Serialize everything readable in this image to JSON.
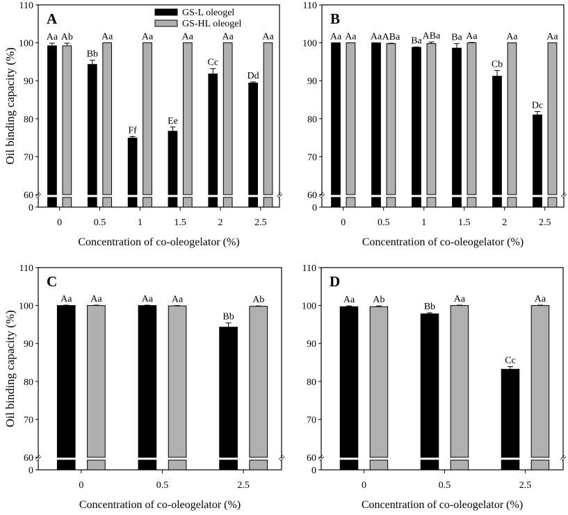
{
  "chart_data": [
    {
      "type": "bar",
      "panel_label": "A",
      "categories": [
        "0",
        "0.5",
        "1",
        "1.5",
        "2",
        "2.5"
      ],
      "xlabel": "Concentration of co-oleogelator (%)",
      "ylabel": "Oil binding capacity (%)",
      "ylim": [
        60,
        110
      ],
      "y_axis_break": [
        0,
        60
      ],
      "yticks": [
        "0",
        "60",
        "70",
        "80",
        "90",
        "100",
        "110"
      ],
      "legend": {
        "placement": "top-center",
        "entries": [
          "GS-L oleogel",
          "GS-HL oleogel"
        ]
      },
      "series": [
        {
          "name": "GS-L oleogel",
          "color": "#000000",
          "values": [
            99.2,
            94.3,
            74.9,
            76.7,
            91.8,
            89.4
          ],
          "errors": [
            0.7,
            1.1,
            0.4,
            1.1,
            1.4,
            0.3
          ],
          "labels": [
            "Aa",
            "Bb",
            "Ff",
            "Ee",
            "Cc",
            "Dd"
          ]
        },
        {
          "name": "GS-HL oleogel",
          "color": "#b0b0b0",
          "values": [
            99.2,
            100,
            100,
            100,
            100,
            100
          ],
          "errors": [
            0.7,
            0,
            0,
            0,
            0,
            0
          ],
          "labels": [
            "Ab",
            "Aa",
            "Aa",
            "Aa",
            "Aa",
            "Aa"
          ]
        }
      ]
    },
    {
      "type": "bar",
      "panel_label": "B",
      "categories": [
        "0",
        "0.5",
        "1",
        "1.5",
        "2",
        "2.5"
      ],
      "xlabel": "Concentration of co-oleogelator (%)",
      "ylabel": "",
      "ylim": [
        60,
        110
      ],
      "y_axis_break": [
        0,
        60
      ],
      "yticks": [
        "0",
        "60",
        "70",
        "80",
        "90",
        "100",
        "110"
      ],
      "series": [
        {
          "name": "GS-L oleogel",
          "color": "#000000",
          "values": [
            100,
            100,
            98.8,
            98.6,
            91.2,
            81.0
          ],
          "errors": [
            0,
            0,
            0.1,
            1.2,
            1.5,
            0.9
          ],
          "labels": [
            "Aa",
            "Aa",
            "Ba",
            "Ba",
            "Cb",
            "Dc"
          ]
        },
        {
          "name": "GS-HL oleogel",
          "color": "#b0b0b0",
          "values": [
            100,
            99.8,
            99.8,
            100,
            100,
            100
          ],
          "errors": [
            0,
            0.1,
            0.4,
            0.1,
            0,
            0
          ],
          "labels": [
            "Aa",
            "ABa",
            "ABa",
            "Aa",
            "Aa",
            "Aa"
          ]
        }
      ]
    },
    {
      "type": "bar",
      "panel_label": "C",
      "categories": [
        "0",
        "0.5",
        "2.5"
      ],
      "xlabel": "Concentration of co-oleogelator (%)",
      "ylabel": "Oil binding capacity (%)",
      "ylim": [
        60,
        110
      ],
      "y_axis_break": [
        0,
        60
      ],
      "yticks": [
        "0",
        "60",
        "70",
        "80",
        "90",
        "100",
        "110"
      ],
      "series": [
        {
          "name": "GS-L oleogel",
          "color": "#000000",
          "values": [
            100,
            100,
            94.3
          ],
          "errors": [
            0.1,
            0.1,
            1.1
          ],
          "labels": [
            "Aa",
            "Aa",
            "Bb"
          ]
        },
        {
          "name": "GS-HL oleogel",
          "color": "#b0b0b0",
          "values": [
            100,
            99.9,
            99.8
          ],
          "errors": [
            0.1,
            0.1,
            0.1
          ],
          "labels": [
            "Aa",
            "Aa",
            "Ab"
          ]
        }
      ]
    },
    {
      "type": "bar",
      "panel_label": "D",
      "categories": [
        "0",
        "0.5",
        "2.5"
      ],
      "xlabel": "Concentration of co-oleogelator (%)",
      "ylabel": "",
      "ylim": [
        60,
        110
      ],
      "y_axis_break": [
        0,
        60
      ],
      "yticks": [
        "0",
        "60",
        "70",
        "80",
        "90",
        "100",
        "110"
      ],
      "series": [
        {
          "name": "GS-L oleogel",
          "color": "#000000",
          "values": [
            99.7,
            97.8,
            83.2
          ],
          "errors": [
            0.2,
            0.3,
            0.7
          ],
          "labels": [
            "Aa",
            "Bb",
            "Cc"
          ]
        },
        {
          "name": "GS-HL oleogel",
          "color": "#b0b0b0",
          "values": [
            99.7,
            100,
            100
          ],
          "errors": [
            0.2,
            0.1,
            0.1
          ],
          "labels": [
            "Ab",
            "Aa",
            "Aa"
          ]
        }
      ]
    }
  ]
}
